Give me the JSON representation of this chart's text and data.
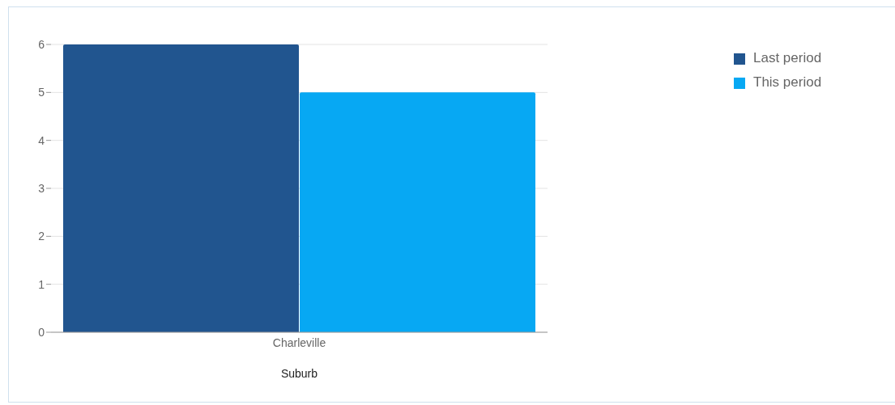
{
  "chart_data": {
    "type": "bar",
    "xlabel": "Suburb",
    "categories": [
      "Charleville"
    ],
    "series": [
      {
        "name": "Last period",
        "color": "#21558f",
        "values": [
          6
        ]
      },
      {
        "name": "This period",
        "color": "#07a8f3",
        "values": [
          5
        ]
      }
    ],
    "ylim": [
      0,
      6
    ],
    "yticks": [
      0,
      1,
      2,
      3,
      4,
      5,
      6
    ],
    "grid": "y",
    "legend": "top right"
  }
}
